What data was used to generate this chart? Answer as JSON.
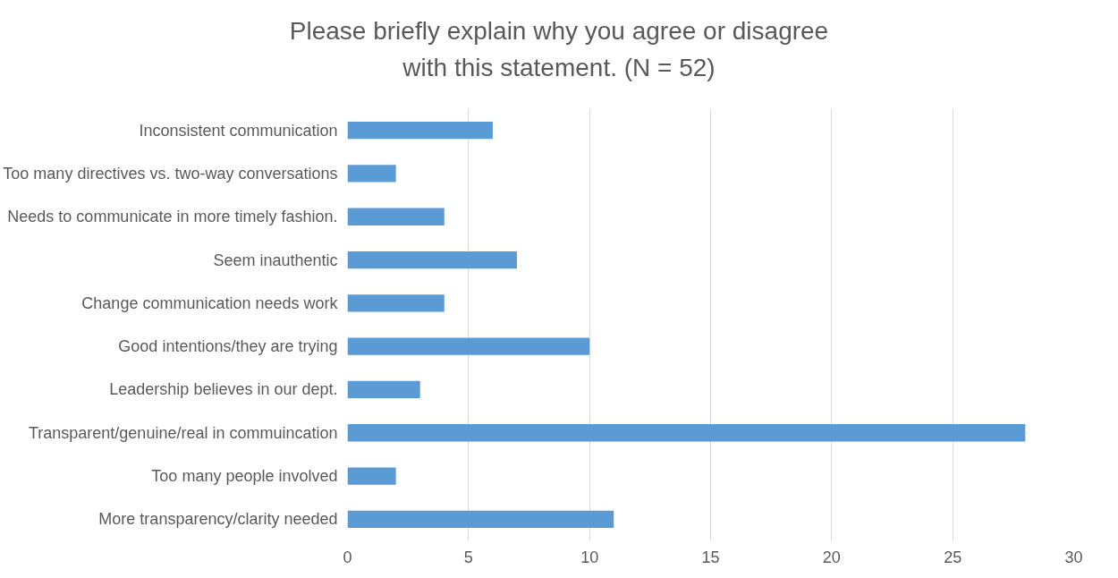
{
  "chart_data": {
    "type": "bar",
    "orientation": "horizontal",
    "title": "Please briefly explain why you agree or disagree with this statement. (N = 52)",
    "categories": [
      "Inconsistent communication",
      "Too many directives vs. two-way conversations",
      "Needs to communicate in more timely fashion.",
      "Seem inauthentic",
      "Change communication needs work",
      "Good intentions/they are trying",
      "Leadership believes in our dept.",
      "Transparent/genuine/real in commuincation",
      "Too many people involved",
      "More transparency/clarity needed"
    ],
    "values": [
      6,
      2,
      4,
      7,
      4,
      10,
      3,
      28,
      2,
      11
    ],
    "color": "#5b9bd5",
    "xlim": [
      0,
      30
    ],
    "xticks": [
      0,
      5,
      10,
      15,
      20,
      25,
      30
    ],
    "grid": "x"
  }
}
